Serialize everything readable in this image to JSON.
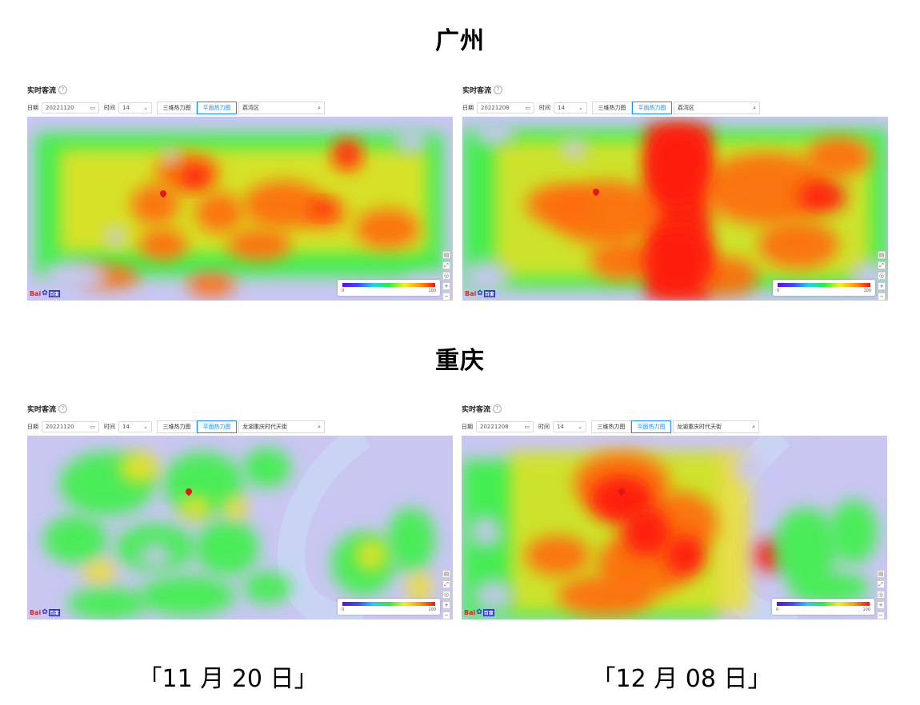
{
  "headings": {
    "guangzhou": "广州",
    "chongqing": "重庆"
  },
  "captions": {
    "left": "「11 月 20 日」",
    "right": "「12 月 08 日」"
  },
  "panels": [
    {
      "id": "gz-1120",
      "title": "实时客流",
      "date_label": "日期",
      "date_value": "20221120",
      "hour_label": "时间",
      "hour_value": "14",
      "btn_3d": "三维热力图",
      "btn_flat": "平面热力图",
      "search_value": "荔湾区",
      "legend_min": "0",
      "legend_max": "100"
    },
    {
      "id": "gz-1208",
      "title": "实时客流",
      "date_label": "日期",
      "date_value": "20221208",
      "hour_label": "时间",
      "hour_value": "14",
      "btn_3d": "三维热力图",
      "btn_flat": "平面热力图",
      "search_value": "荔湾区",
      "legend_min": "0",
      "legend_max": "100"
    },
    {
      "id": "cq-1120",
      "title": "实时客流",
      "date_label": "日期",
      "date_value": "20221120",
      "hour_label": "时间",
      "hour_value": "14",
      "btn_3d": "三维热力图",
      "btn_flat": "平面热力图",
      "search_value": "龙湖重庆时代天街",
      "legend_min": "0",
      "legend_max": "100"
    },
    {
      "id": "cq-1208",
      "title": "实时客流",
      "date_label": "日期",
      "date_value": "20221208",
      "hour_label": "时间",
      "hour_value": "14",
      "btn_3d": "三维热力图",
      "btn_flat": "平面热力图",
      "search_value": "龙湖重庆时代天街",
      "legend_min": "0",
      "legend_max": "100"
    }
  ],
  "map_brand": {
    "bai": "Bai",
    "du": "百度"
  },
  "icons": {
    "help": "help-circle-icon",
    "calendar": "calendar-icon",
    "chevron": "chevron-down-icon",
    "search": "search-icon",
    "pin": "location-pin-icon",
    "zoom_in": "zoom-in-icon",
    "zoom_out": "zoom-out-icon",
    "fullscreen": "fullscreen-icon",
    "locate": "locate-icon",
    "map_type": "map-type-icon"
  },
  "colors": {
    "heat_low": "#c9c6f2",
    "heat_mid": "#3df04a",
    "heat_warm": "#f0e020",
    "heat_hot": "#ff6a10",
    "heat_max": "#ff1a10",
    "accent": "#1890ff",
    "river": "#c9d4f5"
  }
}
